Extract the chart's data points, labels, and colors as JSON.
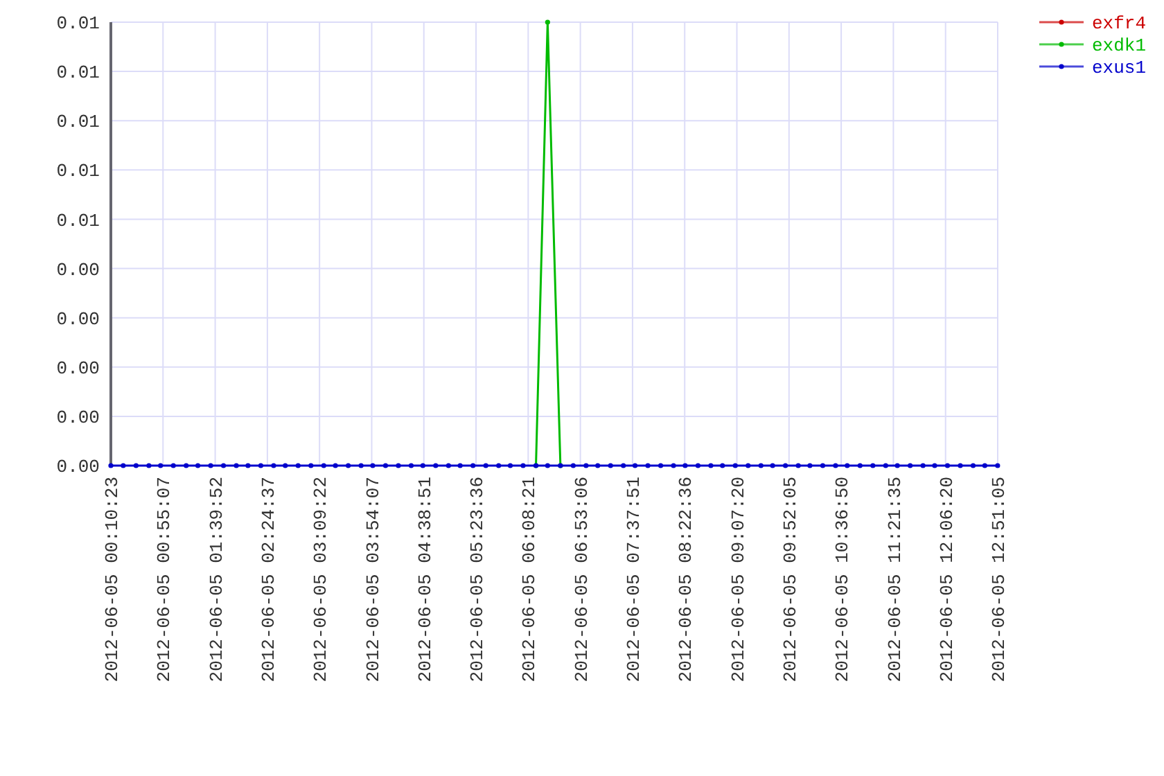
{
  "chart_data": {
    "type": "line",
    "x": [
      "2012-06-05T00:10:23",
      "2012-06-05T00:21",
      "2012-06-05T00:32",
      "2012-06-05T00:43",
      "2012-06-05T00:53",
      "2012-06-05T01:04",
      "2012-06-05T01:15",
      "2012-06-05T01:25",
      "2012-06-05T01:36",
      "2012-06-05T01:47",
      "2012-06-05T01:58",
      "2012-06-05T02:08",
      "2012-06-05T02:19",
      "2012-06-05T02:30",
      "2012-06-05T02:40",
      "2012-06-05T02:51",
      "2012-06-05T03:02",
      "2012-06-05T03:13",
      "2012-06-05T03:23",
      "2012-06-05T03:34",
      "2012-06-05T03:45",
      "2012-06-05T03:55",
      "2012-06-05T04:06",
      "2012-06-05T04:17",
      "2012-06-05T04:28",
      "2012-06-05T04:38",
      "2012-06-05T04:49",
      "2012-06-05T05:00",
      "2012-06-05T05:10",
      "2012-06-05T05:21",
      "2012-06-05T05:32",
      "2012-06-05T05:43",
      "2012-06-05T05:53",
      "2012-06-05T06:04",
      "2012-06-05T06:15",
      "2012-06-05T06:25",
      "2012-06-05T06:36",
      "2012-06-05T06:47",
      "2012-06-05T06:58",
      "2012-06-05T07:08",
      "2012-06-05T07:19",
      "2012-06-05T07:30",
      "2012-06-05T07:40",
      "2012-06-05T07:51",
      "2012-06-05T08:02",
      "2012-06-05T08:13",
      "2012-06-05T08:23",
      "2012-06-05T08:34",
      "2012-06-05T08:45",
      "2012-06-05T08:55",
      "2012-06-05T09:06",
      "2012-06-05T09:17",
      "2012-06-05T09:28",
      "2012-06-05T09:38",
      "2012-06-05T09:49",
      "2012-06-05T10:00",
      "2012-06-05T10:10",
      "2012-06-05T10:21",
      "2012-06-05T10:32",
      "2012-06-05T10:42",
      "2012-06-05T10:53",
      "2012-06-05T11:04",
      "2012-06-05T11:15",
      "2012-06-05T11:25",
      "2012-06-05T11:36",
      "2012-06-05T11:47",
      "2012-06-05T11:57",
      "2012-06-05T12:08",
      "2012-06-05T12:19",
      "2012-06-05T12:30",
      "2012-06-05T12:40",
      "2012-06-05T12:51"
    ],
    "series": [
      {
        "name": "exfr4",
        "color": "#cc0000",
        "values": [
          null,
          null,
          null,
          null,
          null,
          null,
          null,
          null,
          null,
          null,
          null,
          null,
          null,
          null,
          null,
          null,
          null,
          null,
          null,
          null,
          null,
          null,
          null,
          null,
          null,
          null,
          null,
          null,
          null,
          null,
          null,
          null,
          null,
          null,
          null,
          null,
          null,
          null,
          null,
          null,
          null,
          null,
          null,
          null,
          null,
          null,
          null,
          null,
          null,
          null,
          null,
          null,
          null,
          null,
          null,
          null,
          null,
          null,
          null,
          null,
          null,
          null,
          null,
          null,
          null,
          null,
          null,
          null,
          null,
          null,
          null,
          null
        ]
      },
      {
        "name": "exdk1",
        "color": "#00bb00",
        "values": [
          null,
          null,
          null,
          null,
          null,
          null,
          null,
          null,
          null,
          null,
          null,
          null,
          null,
          null,
          null,
          null,
          null,
          null,
          null,
          null,
          null,
          null,
          null,
          null,
          null,
          null,
          null,
          null,
          null,
          null,
          null,
          null,
          null,
          null,
          0,
          0.009,
          0,
          null,
          null,
          null,
          null,
          null,
          null,
          null,
          null,
          null,
          null,
          null,
          null,
          null,
          null,
          null,
          null,
          null,
          null,
          null,
          null,
          null,
          null,
          null,
          null,
          null,
          null,
          null,
          null,
          null,
          null,
          null,
          null,
          null,
          null,
          null
        ]
      },
      {
        "name": "exus1",
        "color": "#0000cc",
        "values": [
          0,
          0,
          0,
          0,
          0,
          0,
          0,
          0,
          0,
          0,
          0,
          0,
          0,
          0,
          0,
          0,
          0,
          0,
          0,
          0,
          0,
          0,
          0,
          0,
          0,
          0,
          0,
          0,
          0,
          0,
          0,
          0,
          0,
          0,
          0,
          0,
          0,
          0,
          0,
          0,
          0,
          0,
          0,
          0,
          0,
          0,
          0,
          0,
          0,
          0,
          0,
          0,
          0,
          0,
          0,
          0,
          0,
          0,
          0,
          0,
          0,
          0,
          0,
          0,
          0,
          0,
          0,
          0,
          0,
          0,
          0,
          0
        ]
      }
    ],
    "xlim": [
      "2012-06-05T00:10:23",
      "2012-06-05T12:51:05"
    ],
    "xticks": [
      {
        "value": "2012-06-05T00:10:23",
        "label": "2012-06-05 00:10:23"
      },
      {
        "value": "2012-06-05T00:55:07",
        "label": "2012-06-05 00:55:07"
      },
      {
        "value": "2012-06-05T01:39:52",
        "label": "2012-06-05 01:39:52"
      },
      {
        "value": "2012-06-05T02:24:37",
        "label": "2012-06-05 02:24:37"
      },
      {
        "value": "2012-06-05T03:09:22",
        "label": "2012-06-05 03:09:22"
      },
      {
        "value": "2012-06-05T03:54:07",
        "label": "2012-06-05 03:54:07"
      },
      {
        "value": "2012-06-05T04:38:51",
        "label": "2012-06-05 04:38:51"
      },
      {
        "value": "2012-06-05T05:23:36",
        "label": "2012-06-05 05:23:36"
      },
      {
        "value": "2012-06-05T06:08:21",
        "label": "2012-06-05 06:08:21"
      },
      {
        "value": "2012-06-05T06:53:06",
        "label": "2012-06-05 06:53:06"
      },
      {
        "value": "2012-06-05T07:37:51",
        "label": "2012-06-05 07:37:51"
      },
      {
        "value": "2012-06-05T08:22:36",
        "label": "2012-06-05 08:22:36"
      },
      {
        "value": "2012-06-05T09:07:20",
        "label": "2012-06-05 09:07:20"
      },
      {
        "value": "2012-06-05T09:52:05",
        "label": "2012-06-05 09:52:05"
      },
      {
        "value": "2012-06-05T10:36:50",
        "label": "2012-06-05 10:36:50"
      },
      {
        "value": "2012-06-05T11:21:35",
        "label": "2012-06-05 11:21:35"
      },
      {
        "value": "2012-06-05T12:06:20",
        "label": "2012-06-05 12:06:20"
      },
      {
        "value": "2012-06-05T12:51:05",
        "label": "2012-06-05 12:51:05"
      }
    ],
    "ylim": [
      0,
      0.009
    ],
    "yticks": [
      {
        "value": 0,
        "label": "0.00"
      },
      {
        "value": 0.001,
        "label": "0.00"
      },
      {
        "value": 0.002,
        "label": "0.00"
      },
      {
        "value": 0.003,
        "label": "0.00"
      },
      {
        "value": 0.004,
        "label": "0.00"
      },
      {
        "value": 0.005,
        "label": "0.01"
      },
      {
        "value": 0.006,
        "label": "0.01"
      },
      {
        "value": 0.007,
        "label": "0.01"
      },
      {
        "value": 0.008,
        "label": "0.01"
      },
      {
        "value": 0.009,
        "label": "0.01"
      }
    ],
    "grid": true,
    "legend": "top right",
    "marker": "circle",
    "line_style": "solid"
  }
}
